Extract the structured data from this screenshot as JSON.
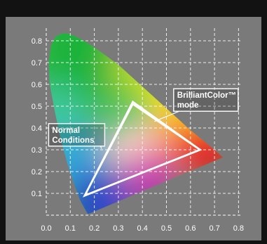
{
  "chart_data": {
    "type": "scatter",
    "title": "",
    "xlabel": "",
    "ylabel": "",
    "xlim": [
      0.0,
      0.8
    ],
    "ylim": [
      0.0,
      0.85
    ],
    "x_ticks": [
      "0.0",
      "0.1",
      "0.2",
      "0.3",
      "0.4",
      "0.5",
      "0.6",
      "0.7",
      "0.8"
    ],
    "y_ticks": [
      "0.1",
      "0.2",
      "0.3",
      "0.4",
      "0.5",
      "0.6",
      "0.7",
      "0.8"
    ],
    "grid": true,
    "gamut_locus": [
      [
        0.175,
        0.005
      ],
      [
        0.17,
        0.01
      ],
      [
        0.16,
        0.03
      ],
      [
        0.14,
        0.07
      ],
      [
        0.12,
        0.13
      ],
      [
        0.09,
        0.23
      ],
      [
        0.06,
        0.35
      ],
      [
        0.035,
        0.48
      ],
      [
        0.015,
        0.6
      ],
      [
        0.01,
        0.7
      ],
      [
        0.02,
        0.78
      ],
      [
        0.04,
        0.82
      ],
      [
        0.07,
        0.835
      ],
      [
        0.1,
        0.83
      ],
      [
        0.14,
        0.81
      ],
      [
        0.2,
        0.77
      ],
      [
        0.3,
        0.69
      ],
      [
        0.4,
        0.59
      ],
      [
        0.5,
        0.49
      ],
      [
        0.6,
        0.39
      ],
      [
        0.7,
        0.3
      ],
      [
        0.735,
        0.265
      ]
    ],
    "series": [
      {
        "name": "Normal Conditions",
        "points": [
          [
            0.36,
            0.51
          ],
          [
            0.64,
            0.3
          ],
          [
            0.16,
            0.09
          ]
        ]
      },
      {
        "name": "BrilliantColor™ mode",
        "points": [
          [
            0.36,
            0.52
          ],
          [
            0.64,
            0.3
          ],
          [
            0.16,
            0.09
          ]
        ]
      }
    ],
    "annotations": [
      {
        "lines": [
          "BrilliantColor™",
          "mode"
        ],
        "x": 0.53,
        "y": 0.58
      },
      {
        "lines": [
          "Normal",
          "Conditions"
        ],
        "x": 0.01,
        "y": 0.42
      }
    ]
  }
}
